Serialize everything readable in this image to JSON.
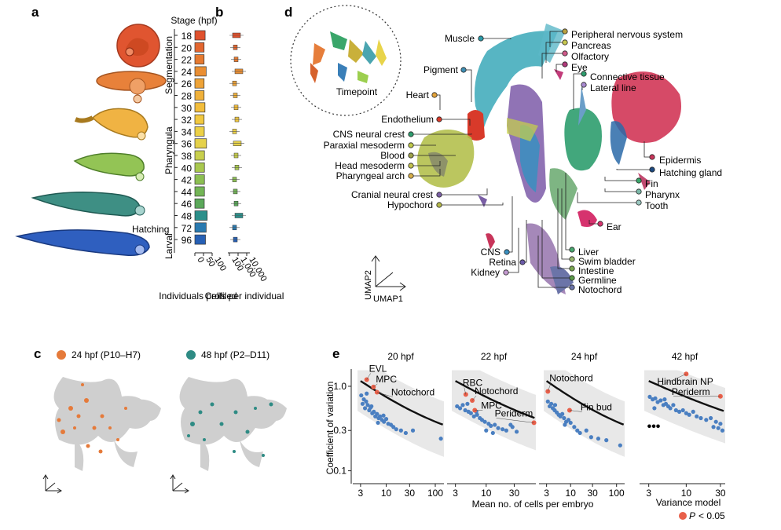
{
  "panel_labels": {
    "a": "a",
    "b": "b",
    "c": "c",
    "d": "d",
    "e": "e"
  },
  "panel_b": {
    "stage_header": "Stage (hpf)",
    "period_labels": [
      "Segmentation",
      "Pharyngula",
      "Hatching",
      "Larval"
    ],
    "stages": [
      "18",
      "20",
      "22",
      "24",
      "26",
      "28",
      "30",
      "32",
      "34",
      "36",
      "38",
      "40",
      "42",
      "44",
      "46",
      "48",
      "72",
      "96"
    ],
    "individuals": [
      14,
      8,
      8,
      20,
      8,
      8,
      13,
      8,
      9,
      22,
      10,
      10,
      10,
      10,
      9,
      26,
      20,
      16
    ],
    "bar_colors": [
      "#e0512d",
      "#e3662f",
      "#e67a30",
      "#e98e33",
      "#eea337",
      "#f0b13a",
      "#f2bd3c",
      "#f1c840",
      "#ecd046",
      "#e5d14a",
      "#c8cf4d",
      "#a9c84e",
      "#8cbf52",
      "#73b556",
      "#5ba85a",
      "#2b8f8a",
      "#2a7ab0",
      "#2660b5"
    ],
    "x_ticks_individuals": [
      "0",
      "50",
      "100"
    ],
    "x_ticks_cells": [
      "100",
      "1,000",
      "10,000"
    ],
    "xlabel_individuals": "Individuals profiled",
    "xlabel_cells": "Cells per individual"
  },
  "panel_c": {
    "legend": [
      {
        "label": "24 hpf (P10–H7)",
        "color": "#e57a3a"
      },
      {
        "label": "48 hpf (P2–D11)",
        "color": "#2e8b84"
      }
    ]
  },
  "panel_d": {
    "inset_label": "Timepoint",
    "axis_labels": {
      "y": "UMAP2",
      "x": "UMAP1"
    },
    "cell_type_labels": [
      "Muscle",
      "Pigment",
      "Heart",
      "Endothelium",
      "CNS neural crest",
      "Paraxial mesoderm",
      "Blood",
      "Head mesoderm",
      "Pharyngeal arch",
      "Cranial neural crest",
      "Hypochord",
      "CNS",
      "Retina",
      "Kidney",
      "Peripheral nervous system",
      "Pancreas",
      "Olfactory",
      "Eye",
      "Connective tissue",
      "Lateral line",
      "Epidermis",
      "Hatching gland",
      "Fin",
      "Pharynx",
      "Tooth",
      "Ear",
      "Liver",
      "Swim bladder",
      "Intestine",
      "Germline",
      "Notochord"
    ]
  },
  "panel_e": {
    "ylabel": "Coefficient of variation",
    "xlabel": "Mean no. of cells per embryo",
    "ellipsis": "•••",
    "legend": {
      "model_label": "Variance model",
      "sig_prefix": "P",
      "sig_rest": "< 0.05",
      "sig_color": "#e8604a",
      "point_color": "#4a7fc1"
    }
  },
  "chart_data": [
    {
      "type": "bar",
      "title": "Individuals profiled",
      "categories": [
        "18",
        "20",
        "22",
        "24",
        "26",
        "28",
        "30",
        "32",
        "34",
        "36",
        "38",
        "40",
        "42",
        "44",
        "46",
        "48",
        "72",
        "96"
      ],
      "values": [
        14,
        8,
        8,
        20,
        8,
        8,
        13,
        8,
        9,
        22,
        10,
        10,
        10,
        10,
        9,
        26,
        20,
        16
      ],
      "xlim": [
        0,
        100
      ]
    },
    {
      "type": "scatter",
      "title": "20 hpf",
      "x_scale": "log",
      "y_scale": "log",
      "xlim": [
        2.6,
        150
      ],
      "ylim": [
        0.08,
        1.6
      ],
      "x_ticks": [
        3,
        10,
        30,
        100
      ],
      "y_ticks": [
        0.1,
        0.3,
        1.0
      ],
      "fit": {
        "a": 1.6,
        "b": 0.45,
        "c": 0.18
      },
      "points": [
        [
          3.1,
          0.78
        ],
        [
          3.3,
          0.62
        ],
        [
          3.5,
          0.7
        ],
        [
          3.7,
          0.55
        ],
        [
          3.9,
          0.66
        ],
        [
          4.2,
          0.6
        ],
        [
          4.5,
          0.52
        ],
        [
          4.8,
          0.56
        ],
        [
          5.2,
          0.48
        ],
        [
          5.6,
          0.5
        ],
        [
          6.0,
          0.44
        ],
        [
          6.5,
          0.47
        ],
        [
          7.0,
          0.42
        ],
        [
          7.5,
          0.44
        ],
        [
          8.2,
          0.4
        ],
        [
          9.0,
          0.38
        ],
        [
          10,
          0.41
        ],
        [
          11,
          0.36
        ],
        [
          12.5,
          0.35
        ],
        [
          14,
          0.33
        ],
        [
          16,
          0.31
        ],
        [
          20,
          0.3
        ],
        [
          25,
          0.28
        ],
        [
          35,
          0.3
        ],
        [
          130,
          0.24
        ],
        [
          4.0,
          0.82
        ],
        [
          5.0,
          0.58
        ],
        [
          6.8,
          0.37
        ],
        [
          8.8,
          0.45
        ]
      ],
      "significant": [
        {
          "label": "EVL",
          "x": 4.0,
          "y": 1.2
        },
        {
          "label": "MPC",
          "x": 5.5,
          "y": 0.98
        },
        {
          "label": "Notochord",
          "x": 6.5,
          "y": 0.85
        }
      ]
    },
    {
      "type": "scatter",
      "title": "22 hpf",
      "x_scale": "log",
      "y_scale": "log",
      "xlim": [
        2.6,
        70
      ],
      "ylim": [
        0.08,
        1.6
      ],
      "x_ticks": [
        3,
        10,
        30
      ],
      "fit": {
        "a": 1.6,
        "b": 0.45,
        "c": 0.18
      },
      "points": [
        [
          3.2,
          0.58
        ],
        [
          3.6,
          0.55
        ],
        [
          4.0,
          0.6
        ],
        [
          4.4,
          0.52
        ],
        [
          5.0,
          0.5
        ],
        [
          5.5,
          0.48
        ],
        [
          6.2,
          0.44
        ],
        [
          7,
          0.46
        ],
        [
          7.8,
          0.42
        ],
        [
          8.5,
          0.4
        ],
        [
          9.5,
          0.38
        ],
        [
          11,
          0.36
        ],
        [
          12,
          0.34
        ],
        [
          14,
          0.35
        ],
        [
          16,
          0.32
        ],
        [
          19,
          0.31
        ],
        [
          22,
          0.3
        ],
        [
          26,
          0.35
        ],
        [
          28,
          0.33
        ],
        [
          33,
          0.29
        ],
        [
          4.8,
          0.62
        ],
        [
          6.8,
          0.5
        ],
        [
          10,
          0.3
        ],
        [
          13,
          0.28
        ]
      ],
      "significant": [
        {
          "label": "RBC",
          "x": 4.5,
          "y": 0.8
        },
        {
          "label": "Notochord",
          "x": 5.8,
          "y": 0.68
        },
        {
          "label": "MPC",
          "x": 6.4,
          "y": 0.52
        },
        {
          "label": "Periderm",
          "x": 65,
          "y": 0.37
        }
      ]
    },
    {
      "type": "scatter",
      "title": "24 hpf",
      "x_scale": "log",
      "y_scale": "log",
      "xlim": [
        2.6,
        150
      ],
      "ylim": [
        0.08,
        1.6
      ],
      "x_ticks": [
        3,
        10,
        30,
        100
      ],
      "fit": {
        "a": 1.6,
        "b": 0.45,
        "c": 0.18
      },
      "points": [
        [
          3.2,
          0.66
        ],
        [
          3.5,
          0.58
        ],
        [
          3.8,
          0.62
        ],
        [
          4.1,
          0.55
        ],
        [
          4.5,
          0.52
        ],
        [
          5.0,
          0.49
        ],
        [
          5.5,
          0.46
        ],
        [
          6.0,
          0.44
        ],
        [
          6.6,
          0.47
        ],
        [
          7.2,
          0.42
        ],
        [
          8.0,
          0.38
        ],
        [
          9,
          0.4
        ],
        [
          10,
          0.37
        ],
        [
          12,
          0.33
        ],
        [
          14,
          0.3
        ],
        [
          16,
          0.28
        ],
        [
          22,
          0.3
        ],
        [
          28,
          0.25
        ],
        [
          40,
          0.24
        ],
        [
          60,
          0.23
        ],
        [
          120,
          0.2
        ],
        [
          4.6,
          0.6
        ],
        [
          7.5,
          0.35
        ]
      ],
      "significant": [
        {
          "label": "Notochord",
          "x": 3.2,
          "y": 0.87
        },
        {
          "label": "Fin bud",
          "x": 9.5,
          "y": 0.52
        }
      ]
    },
    {
      "type": "scatter",
      "title": "42 hpf",
      "x_scale": "log",
      "y_scale": "log",
      "xlim": [
        2.6,
        35
      ],
      "ylim": [
        0.08,
        1.6
      ],
      "x_ticks": [
        3,
        10,
        30
      ],
      "fit": {
        "a": 1.6,
        "b": 0.45,
        "c": 0.18
      },
      "points": [
        [
          3.1,
          0.75
        ],
        [
          3.4,
          0.7
        ],
        [
          3.7,
          0.72
        ],
        [
          4.0,
          0.65
        ],
        [
          4.4,
          0.68
        ],
        [
          4.8,
          0.6
        ],
        [
          5.2,
          0.62
        ],
        [
          5.6,
          0.58
        ],
        [
          6.0,
          0.55
        ],
        [
          6.6,
          0.6
        ],
        [
          7.2,
          0.52
        ],
        [
          8.0,
          0.5
        ],
        [
          9,
          0.52
        ],
        [
          10,
          0.48
        ],
        [
          11,
          0.46
        ],
        [
          12.5,
          0.5
        ],
        [
          14,
          0.44
        ],
        [
          16,
          0.42
        ],
        [
          19,
          0.4
        ],
        [
          22,
          0.42
        ],
        [
          26,
          0.38
        ],
        [
          30,
          0.36
        ],
        [
          32,
          0.3
        ],
        [
          28,
          0.32
        ],
        [
          24,
          0.33
        ],
        [
          5.0,
          0.7
        ],
        [
          3.6,
          0.55
        ]
      ],
      "significant": [
        {
          "label": "Hindbrain NP",
          "x": 10,
          "y": 1.4
        },
        {
          "label": "Periderm",
          "x": 30,
          "y": 0.76
        }
      ]
    }
  ]
}
